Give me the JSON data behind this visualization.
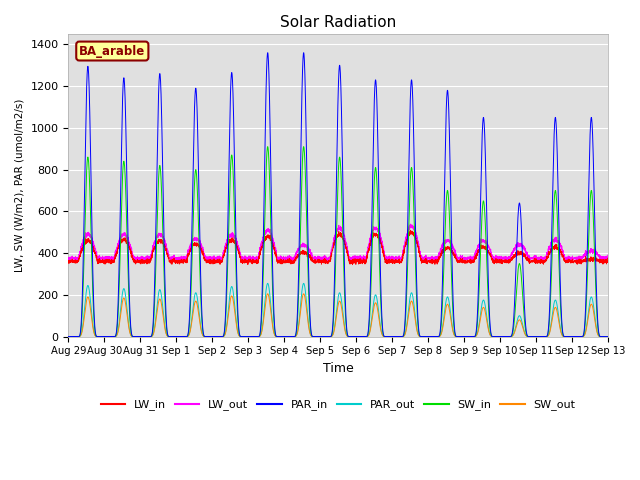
{
  "title": "Solar Radiation",
  "xlabel": "Time",
  "ylabel": "LW, SW (W/m2), PAR (umol/m2/s)",
  "ylim": [
    0,
    1450
  ],
  "yticks": [
    0,
    200,
    400,
    600,
    800,
    1000,
    1200,
    1400
  ],
  "label_text": "BA_arable",
  "bg_color": "#e0e0e0",
  "line_colors": {
    "LW_in": "#ff0000",
    "LW_out": "#ff00ff",
    "PAR_in": "#0000ff",
    "PAR_out": "#00cccc",
    "SW_in": "#00dd00",
    "SW_out": "#ff8800"
  },
  "n_days": 15,
  "day_peaks": {
    "PAR_in": [
      1295,
      1240,
      1260,
      1190,
      1265,
      1360,
      1360,
      1300,
      1230,
      1230,
      1180,
      1050,
      640,
      1050,
      1050
    ],
    "SW_in": [
      860,
      840,
      820,
      800,
      870,
      910,
      910,
      860,
      810,
      810,
      700,
      650,
      350,
      700,
      700
    ],
    "LW_in": [
      460,
      465,
      460,
      445,
      465,
      480,
      405,
      490,
      490,
      500,
      425,
      430,
      400,
      430,
      370
    ],
    "LW_out": [
      490,
      490,
      490,
      470,
      490,
      510,
      440,
      520,
      520,
      530,
      460,
      460,
      440,
      465,
      410
    ],
    "PAR_out": [
      245,
      230,
      225,
      210,
      240,
      255,
      255,
      210,
      200,
      210,
      190,
      175,
      100,
      175,
      190
    ],
    "SW_out": [
      190,
      185,
      180,
      170,
      195,
      205,
      205,
      170,
      162,
      170,
      155,
      140,
      80,
      140,
      155
    ]
  },
  "lw_base": 360,
  "lw_out_base": 375,
  "tick_labels": [
    "Aug 29",
    "Aug 30",
    "Aug 31",
    "Sep 1",
    "Sep 2",
    "Sep 3",
    "Sep 4",
    "Sep 5",
    "Sep 6",
    "Sep 7",
    "Sep 8",
    "Sep 9",
    "Sep 10",
    "Sep 11",
    "Sep 12",
    "Sep 13"
  ],
  "sunrise": 6.5,
  "sunset": 19.5,
  "sharpness": 4.0
}
